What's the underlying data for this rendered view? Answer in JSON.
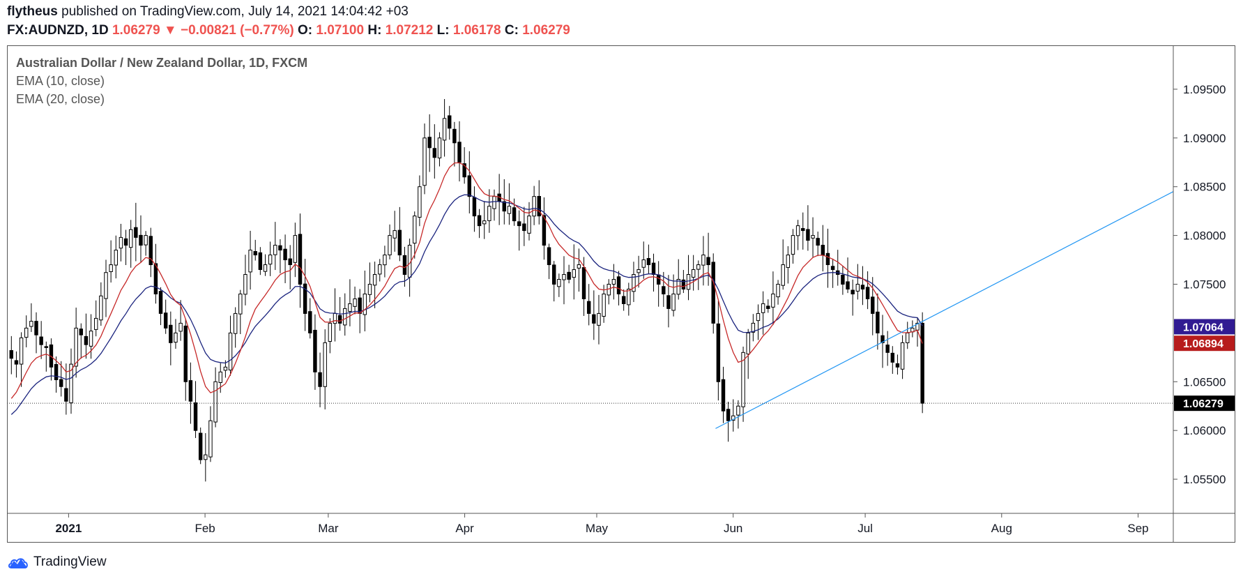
{
  "header": {
    "author": "flytheus",
    "published_text": "published on TradingView.com, July 14, 2021 14:04:42 +03",
    "symbol": "FX:AUDNZD, 1D",
    "last": "1.06279",
    "change_arrow": "▼",
    "change": "−0.00821 (−0.77%)",
    "o_label": "O:",
    "o_value": "1.07100",
    "h_label": "H:",
    "h_value": "1.07212",
    "l_label": "L:",
    "l_value": "1.06178",
    "c_label": "C:",
    "c_value": "1.06279"
  },
  "legend": {
    "title": "Australian Dollar / New Zealand Dollar, 1D, FXCM",
    "ema1": "EMA (10, close)",
    "ema2": "EMA (20, close)"
  },
  "branding": {
    "name": "TradingView"
  },
  "colors": {
    "up_body": "#ffffff",
    "down_body": "#000000",
    "ema10": "#c62828",
    "ema20": "#1a237e",
    "trendline": "#2196f3",
    "tag_ema20": "#311b92",
    "tag_ema10": "#b71c1c",
    "tag_last": "#000000"
  },
  "chart_data": {
    "type": "candlestick",
    "title": "Australian Dollar / New Zealand Dollar, 1D, FXCM",
    "ylim": [
      1.0515,
      1.0995
    ],
    "y_ticks": [
      "1.09500",
      "1.09000",
      "1.08500",
      "1.08000",
      "1.07500",
      "1.06500",
      "1.06000",
      "1.05500"
    ],
    "x_ticks": [
      "2021",
      "Feb",
      "Mar",
      "Apr",
      "May",
      "Jun",
      "Jul",
      "Aug",
      "Sep"
    ],
    "x_tick_days": [
      0,
      31,
      59,
      90,
      120,
      151,
      181,
      212,
      243
    ],
    "start_day": -14,
    "end_day": 251,
    "last_day": 194,
    "ema10_last": "1.06894",
    "ema20_last": "1.07064",
    "last_price": "1.06279",
    "closes": [
      1.0674,
      1.0668,
      1.0695,
      1.0705,
      1.0712,
      1.0698,
      1.0688,
      1.0685,
      1.0665,
      1.0652,
      1.0645,
      1.063,
      1.0668,
      1.0705,
      1.0698,
      1.0688,
      1.0702,
      1.0715,
      1.0738,
      1.0762,
      1.077,
      1.0785,
      1.0798,
      1.079,
      1.0806,
      1.0798,
      1.079,
      1.08,
      1.077,
      1.074,
      1.072,
      1.0705,
      1.069,
      1.07,
      1.071,
      1.065,
      1.063,
      1.06,
      1.057,
      1.0575,
      1.061,
      1.065,
      1.066,
      1.0665,
      1.07,
      1.072,
      1.074,
      1.076,
      1.0785,
      1.078,
      1.0765,
      1.077,
      1.078,
      1.079,
      1.0785,
      1.0775,
      1.077,
      1.08,
      1.075,
      1.072,
      1.07,
      1.066,
      1.0645,
      1.069,
      1.071,
      1.072,
      1.071,
      1.0725,
      1.073,
      1.0735,
      1.072,
      1.074,
      1.075,
      1.076,
      1.077,
      1.078,
      1.08,
      1.0805,
      1.078,
      1.076,
      1.079,
      1.082,
      1.085,
      1.09,
      1.089,
      1.088,
      1.09,
      1.092,
      1.091,
      1.0895,
      1.0875,
      1.086,
      1.084,
      1.082,
      1.081,
      1.0815,
      1.083,
      1.084,
      1.0835,
      1.0825,
      1.083,
      1.0815,
      1.081,
      1.0805,
      1.082,
      1.084,
      1.082,
      1.079,
      1.077,
      1.075,
      1.0755,
      1.076,
      1.0755,
      1.0765,
      1.077,
      1.0735,
      1.072,
      1.071,
      1.072,
      1.074,
      1.075,
      1.0755,
      1.074,
      1.073,
      1.0745,
      1.076,
      1.0765,
      1.0775,
      1.077,
      1.076,
      1.075,
      1.074,
      1.0725,
      1.074,
      1.0755,
      1.0745,
      1.076,
      1.0765,
      1.077,
      1.078,
      1.077,
      1.071,
      1.065,
      1.062,
      1.061,
      1.0615,
      1.0625,
      1.068,
      1.07,
      1.071,
      1.072,
      1.073,
      1.0725,
      1.074,
      1.075,
      1.077,
      1.078,
      1.08,
      1.081,
      1.0805,
      1.0795,
      1.08,
      1.079,
      1.078,
      1.077,
      1.0765,
      1.076,
      1.075,
      1.0745,
      1.074,
      1.075,
      1.0745,
      1.0735,
      1.072,
      1.07,
      1.069,
      1.068,
      1.067,
      1.0665,
      1.069,
      1.07,
      1.0705,
      1.071,
      1.0628
    ],
    "trendline": {
      "from": {
        "day": 147,
        "price": 1.0602
      },
      "to": {
        "day": 251,
        "price": 1.0845
      }
    },
    "last_price_line": 1.06279
  }
}
